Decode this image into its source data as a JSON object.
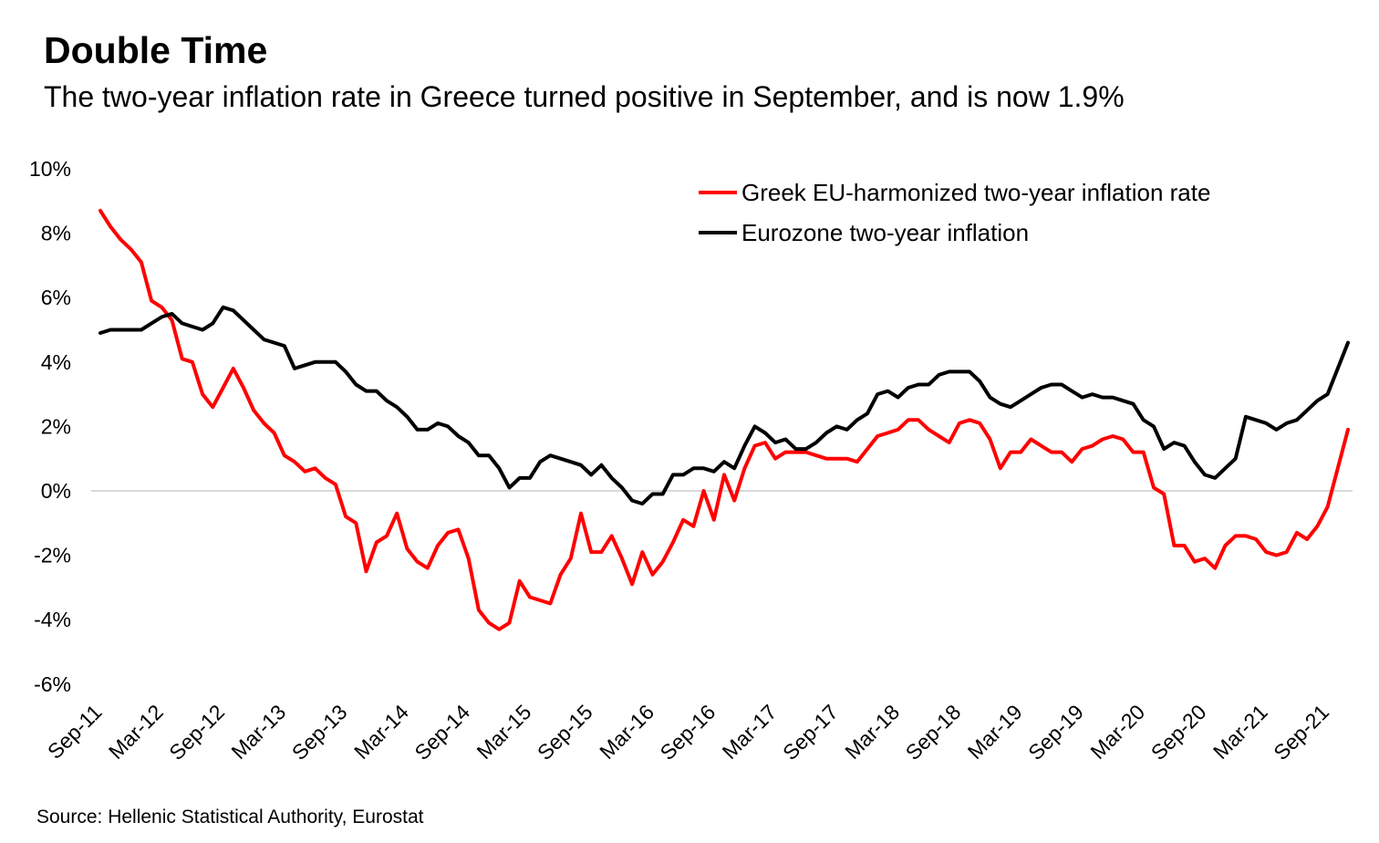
{
  "header": {
    "title": "Double Time",
    "subtitle": "The two-year inflation rate in Greece turned positive in September, and is now 1.9%"
  },
  "footer": {
    "source": "Source: Hellenic Statistical Authority, Eurostat"
  },
  "chart_data": {
    "type": "line",
    "title": "Double Time",
    "subtitle": "The two-year inflation rate in Greece turned positive in September, and is now 1.9%",
    "xlabel": "",
    "ylabel": "",
    "x_start": "Sep-11",
    "x_end": "Nov-21",
    "x_frequency": "monthly",
    "x_tick_labels": [
      "Sep-11",
      "Mar-12",
      "Sep-12",
      "Mar-13",
      "Sep-13",
      "Mar-14",
      "Sep-14",
      "Mar-15",
      "Sep-15",
      "Mar-16",
      "Sep-16",
      "Mar-17",
      "Sep-17",
      "Mar-18",
      "Sep-18",
      "Mar-19",
      "Sep-19",
      "Mar-20",
      "Sep-20",
      "Mar-21",
      "Sep-21"
    ],
    "y_tick_values": [
      10,
      8,
      6,
      4,
      2,
      0,
      -2,
      -4,
      -6
    ],
    "y_tick_labels": [
      "10%",
      "8%",
      "6%",
      "4%",
      "2%",
      "0%",
      "-2%",
      "-4%",
      "-6%"
    ],
    "ylim": [
      -6,
      10
    ],
    "y_unit": "%",
    "grid": "zero line only",
    "legend_position": "top-right",
    "series": [
      {
        "name": "Greek EU-harmonized two-year inflation rate",
        "color": "#ff0000",
        "values": [
          8.7,
          8.2,
          7.8,
          7.5,
          7.1,
          5.9,
          5.7,
          5.3,
          4.1,
          4.0,
          3.0,
          2.6,
          3.2,
          3.8,
          3.2,
          2.5,
          2.1,
          1.8,
          1.1,
          0.9,
          0.6,
          0.7,
          0.4,
          0.2,
          -0.8,
          -1.0,
          -2.5,
          -1.6,
          -1.4,
          -0.7,
          -1.8,
          -2.2,
          -2.4,
          -1.7,
          -1.3,
          -1.2,
          -2.1,
          -3.7,
          -4.1,
          -4.3,
          -4.1,
          -2.8,
          -3.3,
          -3.4,
          -3.5,
          -2.6,
          -2.1,
          -0.7,
          -1.9,
          -1.9,
          -1.4,
          -2.1,
          -2.9,
          -1.9,
          -2.6,
          -2.2,
          -1.6,
          -0.9,
          -1.1,
          0.0,
          -0.9,
          0.5,
          -0.3,
          0.7,
          1.4,
          1.5,
          1.0,
          1.2,
          1.2,
          1.2,
          1.1,
          1.0,
          1.0,
          1.0,
          0.9,
          1.3,
          1.7,
          1.8,
          1.9,
          2.2,
          2.2,
          1.9,
          1.7,
          1.5,
          2.1,
          2.2,
          2.1,
          1.6,
          0.7,
          1.2,
          1.2,
          1.6,
          1.4,
          1.2,
          1.2,
          0.9,
          1.3,
          1.4,
          1.6,
          1.7,
          1.6,
          1.2,
          1.2,
          0.1,
          -0.1,
          -1.7,
          -1.7,
          -2.2,
          -2.1,
          -2.4,
          -1.7,
          -1.4,
          -1.4,
          -1.5,
          -1.9,
          -2.0,
          -1.9,
          -1.3,
          -1.5,
          -1.1,
          -0.5,
          0.7,
          1.9
        ]
      },
      {
        "name": "Eurozone two-year inflation",
        "color": "#000000",
        "values": [
          4.9,
          5.0,
          5.0,
          5.0,
          5.0,
          5.2,
          5.4,
          5.5,
          5.2,
          5.1,
          5.0,
          5.2,
          5.7,
          5.6,
          5.3,
          5.0,
          4.7,
          4.6,
          4.5,
          3.8,
          3.9,
          4.0,
          4.0,
          4.0,
          3.7,
          3.3,
          3.1,
          3.1,
          2.8,
          2.6,
          2.3,
          1.9,
          1.9,
          2.1,
          2.0,
          1.7,
          1.5,
          1.1,
          1.1,
          0.7,
          0.1,
          0.4,
          0.4,
          0.9,
          1.1,
          1.0,
          0.9,
          0.8,
          0.5,
          0.8,
          0.4,
          0.1,
          -0.3,
          -0.4,
          -0.1,
          -0.1,
          0.5,
          0.5,
          0.7,
          0.7,
          0.6,
          0.9,
          0.7,
          1.4,
          2.0,
          1.8,
          1.5,
          1.6,
          1.3,
          1.3,
          1.5,
          1.8,
          2.0,
          1.9,
          2.2,
          2.4,
          3.0,
          3.1,
          2.9,
          3.2,
          3.3,
          3.3,
          3.6,
          3.7,
          3.7,
          3.7,
          3.4,
          2.9,
          2.7,
          2.6,
          2.8,
          3.0,
          3.2,
          3.3,
          3.3,
          3.1,
          2.9,
          3.0,
          2.9,
          2.9,
          2.8,
          2.7,
          2.2,
          2.0,
          1.3,
          1.5,
          1.4,
          0.9,
          0.5,
          0.4,
          0.7,
          1.0,
          2.3,
          2.2,
          2.1,
          1.9,
          2.1,
          2.2,
          2.5,
          2.8,
          3.0,
          3.8,
          4.6
        ]
      }
    ]
  }
}
